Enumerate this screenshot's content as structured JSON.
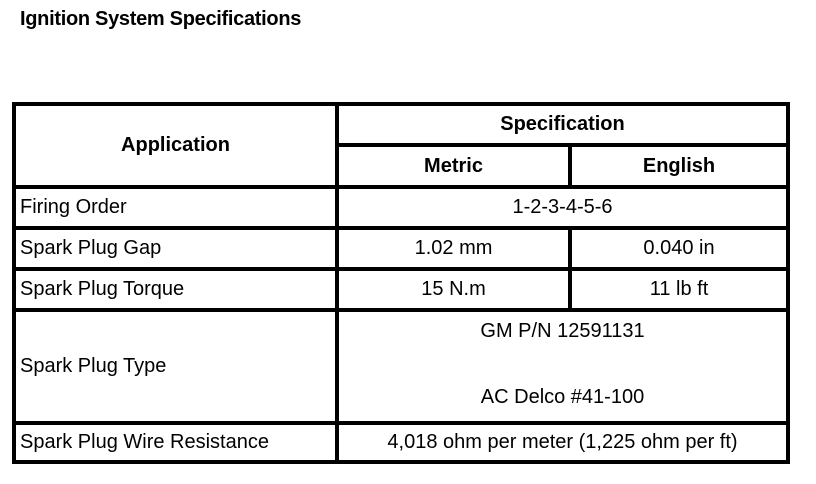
{
  "title": "Ignition System Specifications",
  "table": {
    "headers": {
      "application": "Application",
      "specification": "Specification",
      "metric": "Metric",
      "english": "English"
    },
    "rows": [
      {
        "application": "Firing Order",
        "value": "1-2-3-4-5-6"
      },
      {
        "application": "Spark Plug Gap",
        "metric": "1.02 mm",
        "english": "0.040 in"
      },
      {
        "application": "Spark Plug Torque",
        "metric": "15 N.m",
        "english": "11 lb ft"
      },
      {
        "application": "Spark Plug Type",
        "values": [
          "GM P/N 12591131",
          "AC Delco #41-100"
        ]
      },
      {
        "application": "Spark Plug Wire Resistance",
        "value": "4,018 ohm per meter (1,225 ohm per ft)"
      }
    ]
  }
}
